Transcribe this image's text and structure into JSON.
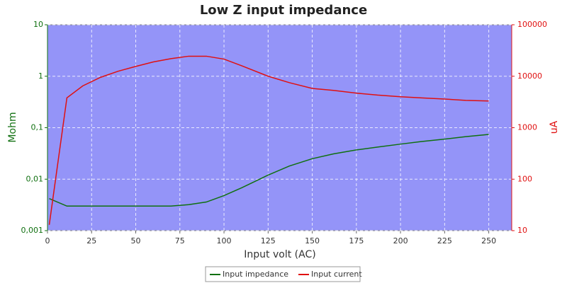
{
  "chart_data": {
    "type": "line",
    "title": "Low Z input impedance",
    "xlabel": "Input volt (AC)",
    "ylabel": "Mohm",
    "y2label": "uA",
    "x": [
      1,
      11,
      20,
      30,
      40,
      50,
      60,
      70,
      80,
      90,
      100,
      110,
      125,
      137,
      150,
      162,
      175,
      187,
      200,
      212,
      225,
      237,
      250
    ],
    "series": [
      {
        "name": "Input impedance",
        "color": "#107010",
        "values": [
          0.0042,
          0.003,
          0.003,
          0.003,
          0.003,
          0.003,
          0.003,
          0.003,
          0.0032,
          0.0036,
          0.0048,
          0.0068,
          0.012,
          0.018,
          0.025,
          0.031,
          0.037,
          0.042,
          0.048,
          0.054,
          0.06,
          0.067,
          0.074
        ]
      },
      {
        "name": "Input current",
        "color": "#e01010",
        "axis": "y2",
        "values": [
          13,
          3800,
          6500,
          9500,
          12500,
          15500,
          19000,
          22000,
          24500,
          24500,
          21500,
          16000,
          10000,
          7500,
          5800,
          5300,
          4700,
          4300,
          4000,
          3800,
          3600,
          3400,
          3300
        ]
      }
    ],
    "xlim": [
      0,
      263
    ],
    "xticks": [
      0,
      25,
      50,
      75,
      100,
      125,
      150,
      175,
      200,
      225,
      250
    ],
    "ylim": [
      0.001,
      10
    ],
    "yticks": [
      {
        "value": 0.001,
        "label": "0,001"
      },
      {
        "value": 0.01,
        "label": "0,01"
      },
      {
        "value": 0.1,
        "label": "0,1"
      },
      1,
      10
    ],
    "y2lim": [
      10,
      100000
    ],
    "y2ticks": [
      10,
      100,
      1000,
      10000,
      100000
    ],
    "ylog": true,
    "y2log": true,
    "grid": true,
    "legend": "bottom"
  }
}
